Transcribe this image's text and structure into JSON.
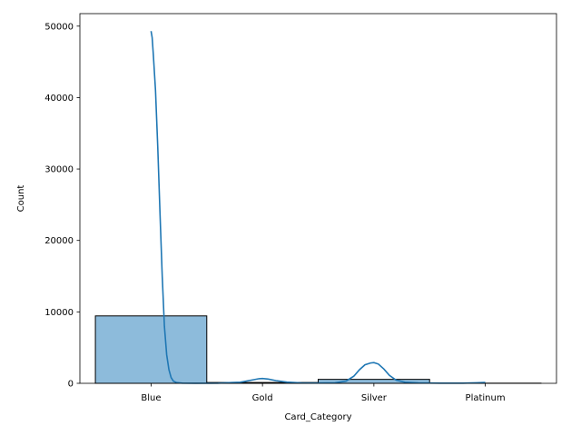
{
  "chart_data": {
    "type": "bar",
    "xlabel": "Card_Category",
    "ylabel": "Count",
    "categories": [
      "Blue",
      "Gold",
      "Silver",
      "Platinum"
    ],
    "values": [
      9436,
      116,
      555,
      20
    ],
    "ylim": [
      0,
      51750
    ],
    "yticks": [
      0,
      10000,
      20000,
      30000,
      40000,
      50000
    ],
    "grid": false,
    "bar_fill": "#8dbbdb",
    "bar_edge": "#000000",
    "kde_color": "#1f77b4",
    "kde_curve": [
      [
        0.0,
        49300
      ],
      [
        0.01,
        48400
      ],
      [
        0.02,
        46000
      ],
      [
        0.04,
        41000
      ],
      [
        0.06,
        33000
      ],
      [
        0.08,
        24000
      ],
      [
        0.1,
        15000
      ],
      [
        0.12,
        8000
      ],
      [
        0.14,
        4000
      ],
      [
        0.16,
        1900
      ],
      [
        0.18,
        800
      ],
      [
        0.2,
        300
      ],
      [
        0.23,
        100
      ],
      [
        0.28,
        30
      ],
      [
        0.4,
        10
      ],
      [
        0.6,
        30
      ],
      [
        0.8,
        150
      ],
      [
        0.9,
        450
      ],
      [
        0.97,
        650
      ],
      [
        1.0,
        670
      ],
      [
        1.05,
        600
      ],
      [
        1.12,
        380
      ],
      [
        1.22,
        160
      ],
      [
        1.35,
        60
      ],
      [
        1.5,
        40
      ],
      [
        1.65,
        80
      ],
      [
        1.75,
        300
      ],
      [
        1.82,
        1000
      ],
      [
        1.87,
        1900
      ],
      [
        1.92,
        2600
      ],
      [
        1.97,
        2850
      ],
      [
        2.0,
        2900
      ],
      [
        2.04,
        2700
      ],
      [
        2.09,
        2000
      ],
      [
        2.14,
        1100
      ],
      [
        2.2,
        450
      ],
      [
        2.28,
        150
      ],
      [
        2.4,
        50
      ],
      [
        2.6,
        20
      ],
      [
        2.8,
        30
      ],
      [
        2.92,
        80
      ],
      [
        3.0,
        110
      ]
    ]
  }
}
